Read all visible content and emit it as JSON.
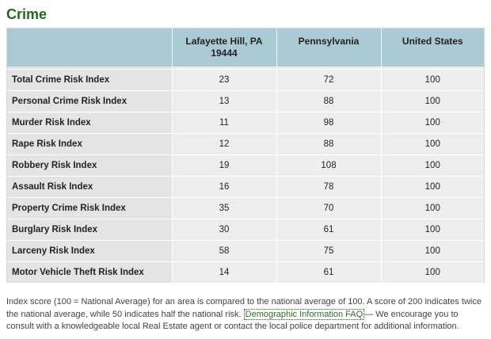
{
  "section": {
    "title": "Crime"
  },
  "table": {
    "headers": [
      "",
      "Lafayette Hill, PA 19444",
      "Pennsylvania",
      "United States"
    ],
    "rows": [
      {
        "label": "Total Crime Risk Index",
        "local": "23",
        "state": "72",
        "national": "100"
      },
      {
        "label": "Personal Crime Risk Index",
        "local": "13",
        "state": "88",
        "national": "100"
      },
      {
        "label": "Murder Risk Index",
        "local": "11",
        "state": "98",
        "national": "100"
      },
      {
        "label": "Rape Risk Index",
        "local": "12",
        "state": "88",
        "national": "100"
      },
      {
        "label": "Robbery Risk Index",
        "local": "19",
        "state": "108",
        "national": "100"
      },
      {
        "label": "Assault Risk Index",
        "local": "16",
        "state": "78",
        "national": "100"
      },
      {
        "label": "Property Crime Risk Index",
        "local": "35",
        "state": "70",
        "national": "100"
      },
      {
        "label": "Burglary Risk Index",
        "local": "30",
        "state": "61",
        "national": "100"
      },
      {
        "label": "Larceny Risk Index",
        "local": "58",
        "state": "75",
        "national": "100"
      },
      {
        "label": "Motor Vehicle Theft Risk Index",
        "local": "14",
        "state": "61",
        "national": "100"
      }
    ]
  },
  "footnote": {
    "text_before": "Index score (100 = National Average) for an area is compared to the national average of 100. A score of 200 indicates twice the national average, while 50 indicates half the national risk.",
    "link_label": "Demographic Information FAQ",
    "text_after": "— We encourage you to consult with a knowledgeable local Real Estate agent or contact the local police department for additional information."
  },
  "colors": {
    "title": "#1d6b1d",
    "header_bg": "#aacbd3",
    "row_bg": "#eeeeee",
    "label_bg": "#e4e4e4",
    "link": "#2b6f2b"
  }
}
